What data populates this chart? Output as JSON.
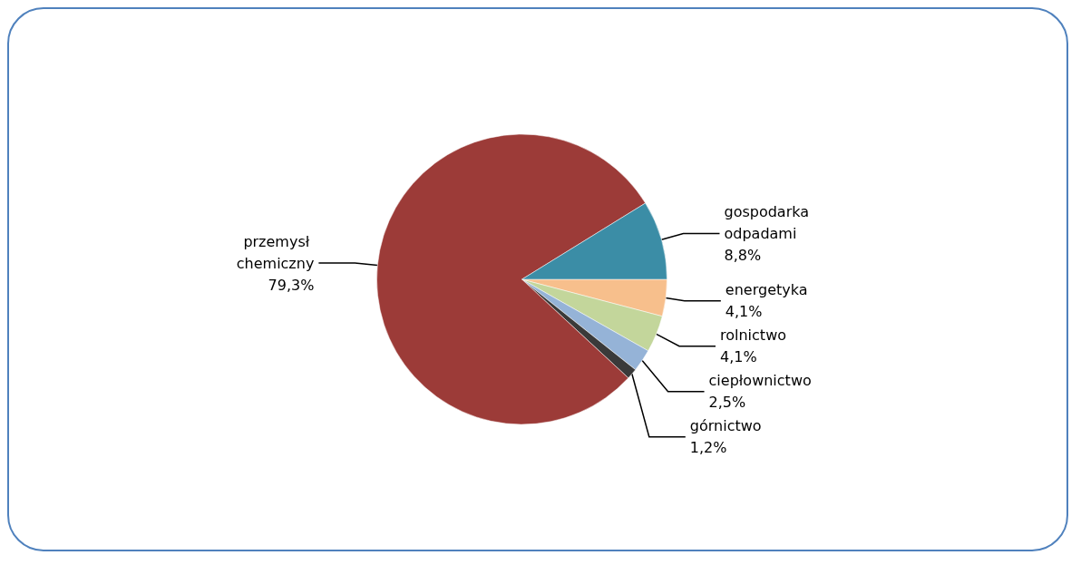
{
  "chart_data": {
    "type": "pie",
    "categories": [
      "energetyka",
      "rolnictwo",
      "ciepłownictwo",
      "górnictwo",
      "przemysł chemiczny",
      "gospodarka odpadami"
    ],
    "values": [
      4.1,
      4.1,
      2.5,
      1.2,
      79.3,
      8.8
    ],
    "colors": [
      "#f7bf8c",
      "#c3d69b",
      "#95b3d7",
      "#3a3a3a",
      "#9c3b38",
      "#3b8da6"
    ],
    "value_labels": [
      "4,1%",
      "4,1%",
      "2,5%",
      "1,2%",
      "79,3%",
      "8,8%"
    ],
    "legend": false
  }
}
